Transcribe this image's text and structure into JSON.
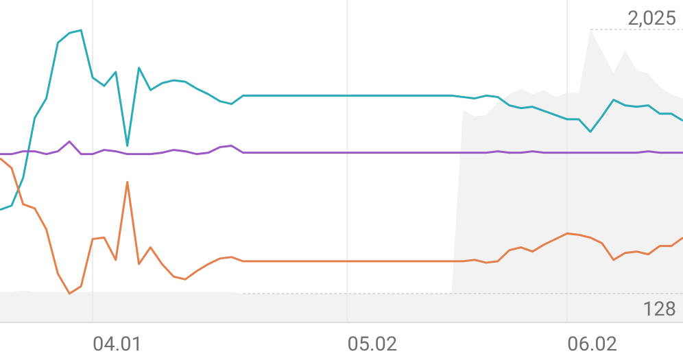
{
  "chart_data": {
    "type": "line",
    "xlim": [
      0,
      59
    ],
    "xticks": [
      {
        "value": 8,
        "label": "04.01"
      },
      {
        "value": 30,
        "label": "05.02"
      },
      {
        "value": 49,
        "label": "06.02"
      }
    ],
    "ylim": [
      -79,
      2237
    ],
    "yticks": [
      {
        "value": 2025,
        "label": "2,025"
      },
      {
        "value": 128,
        "label": "128"
      }
    ],
    "grid": true,
    "area": {
      "color": "#f2f2f2",
      "values": [
        140,
        140,
        150,
        140,
        140,
        140,
        140,
        140,
        140,
        140,
        140,
        140,
        140,
        140,
        140,
        140,
        140,
        140,
        140,
        140,
        140,
        128,
        128,
        128,
        128,
        128,
        128,
        128,
        128,
        128,
        128,
        128,
        128,
        128,
        128,
        128,
        128,
        128,
        128,
        128,
        1450,
        1400,
        1410,
        1500,
        1560,
        1600,
        1560,
        1590,
        1540,
        1570,
        1570,
        2025,
        1870,
        1710,
        1880,
        1730,
        1710,
        1610,
        1560,
        1530
      ]
    },
    "series": [
      {
        "color": "#2aabb8",
        "values": [
          730,
          760,
          960,
          1390,
          1530,
          1930,
          2000,
          2020,
          1680,
          1620,
          1720,
          1190,
          1750,
          1590,
          1640,
          1660,
          1650,
          1600,
          1560,
          1510,
          1490,
          1550,
          1550,
          1550,
          1550,
          1550,
          1550,
          1550,
          1550,
          1550,
          1550,
          1550,
          1550,
          1550,
          1550,
          1550,
          1550,
          1550,
          1550,
          1550,
          1540,
          1530,
          1550,
          1540,
          1480,
          1460,
          1470,
          1440,
          1410,
          1380,
          1380,
          1290,
          1400,
          1520,
          1480,
          1470,
          1480,
          1420,
          1420,
          1370
        ]
      },
      {
        "color": "#9b59c6",
        "values": [
          1130,
          1130,
          1150,
          1150,
          1130,
          1150,
          1220,
          1130,
          1130,
          1160,
          1150,
          1130,
          1130,
          1130,
          1140,
          1160,
          1150,
          1130,
          1140,
          1180,
          1190,
          1140,
          1140,
          1140,
          1140,
          1140,
          1140,
          1140,
          1140,
          1140,
          1140,
          1140,
          1140,
          1140,
          1140,
          1140,
          1140,
          1140,
          1140,
          1140,
          1140,
          1140,
          1140,
          1150,
          1140,
          1140,
          1150,
          1140,
          1140,
          1140,
          1140,
          1140,
          1140,
          1140,
          1140,
          1140,
          1150,
          1140,
          1140,
          1140
        ]
      },
      {
        "color": "#e57f4c",
        "values": [
          1100,
          1030,
          770,
          740,
          590,
          270,
          128,
          180,
          520,
          530,
          370,
          930,
          340,
          460,
          340,
          250,
          230,
          290,
          340,
          380,
          390,
          360,
          360,
          360,
          360,
          360,
          360,
          360,
          360,
          360,
          360,
          360,
          360,
          360,
          360,
          360,
          360,
          360,
          360,
          360,
          360,
          370,
          350,
          360,
          440,
          460,
          430,
          480,
          520,
          560,
          550,
          530,
          490,
          370,
          420,
          430,
          410,
          470,
          470,
          530
        ]
      }
    ]
  }
}
